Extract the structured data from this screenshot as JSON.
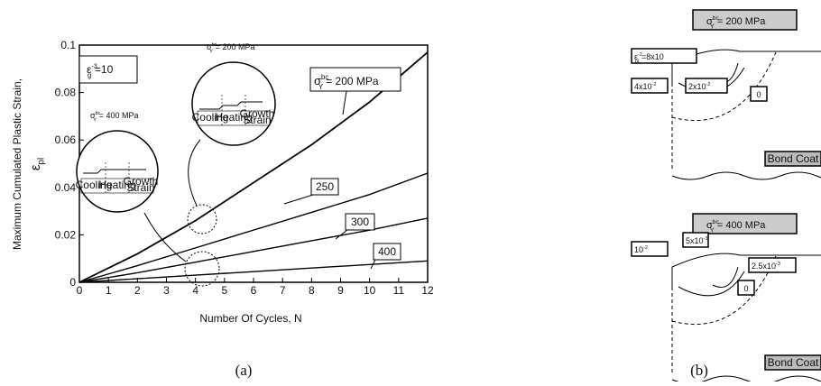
{
  "chart_data": {
    "type": "line",
    "y_label": "Maximum Cumulated Plastic Strain,",
    "y_label_symbol": {
      "base": "ε",
      "sub": "pl"
    },
    "x_label": "Number Of Cycles,  N",
    "caption": "(a)",
    "x": [
      0,
      2,
      4,
      6,
      8,
      10,
      12
    ],
    "series": [
      {
        "name": "= 200 MPa",
        "label_symbol": {
          "base": "σ",
          "sub": "Y",
          "sup": "bc"
        },
        "color": "#000000",
        "values": [
          0,
          0.012,
          0.026,
          0.042,
          0.058,
          0.076,
          0.097
        ]
      },
      {
        "name": "250",
        "color": "#000000",
        "values": [
          0,
          0.007,
          0.0145,
          0.022,
          0.0295,
          0.037,
          0.046
        ]
      },
      {
        "name": "300",
        "color": "#000000",
        "values": [
          0,
          0.004,
          0.0085,
          0.013,
          0.0175,
          0.022,
          0.027
        ]
      },
      {
        "name": "400",
        "color": "#000000",
        "values": [
          0,
          0.0015,
          0.003,
          0.0045,
          0.006,
          0.0075,
          0.009
        ]
      }
    ],
    "xlim": [
      0,
      12
    ],
    "xticks": [
      0,
      1,
      2,
      3,
      4,
      5,
      6,
      7,
      8,
      9,
      10,
      11,
      12
    ],
    "ylim": [
      0,
      0.1
    ],
    "yticks": [
      0,
      0.02,
      0.04,
      0.06,
      0.08,
      0.1
    ],
    "grid": false,
    "annotations": {
      "strain_rate": {
        "base": "ε",
        "sub": "g",
        "eq": "=10",
        "sup": "-3"
      },
      "inset_low": {
        "base": "σ",
        "sub": "Y",
        "sup": "bc",
        "rest": "= 400 MPa"
      },
      "inset_high": {
        "base": "σ",
        "sub": "Y",
        "sup": "bc",
        "rest": "= 200 MPa"
      },
      "phases": [
        "Cooling",
        "Heating",
        "Growth",
        "Strain"
      ]
    }
  },
  "diagram": {
    "caption": "(b)",
    "panels": [
      {
        "title": {
          "base": "σ",
          "sub": "Y",
          "sup": "bc",
          "rest": "= 200 MPa"
        },
        "labels": [
          {
            "base": "ε",
            "sub": "pl",
            "rest": "=8x10",
            "sup": "-2"
          },
          {
            "base": "4x10",
            "sup": "-2"
          },
          {
            "base": "2x10",
            "sup": "-2"
          },
          {
            "base": "0"
          }
        ],
        "substrate": "Bond Coat"
      },
      {
        "title": {
          "base": "σ",
          "sub": "Y",
          "sup": "bc",
          "rest": "= 400 MPa"
        },
        "labels": [
          {
            "base": "10",
            "sup": "-2"
          },
          {
            "base": "5x10",
            "sup": "-3"
          },
          {
            "base": "2.5x10",
            "sup": "-3"
          },
          {
            "base": "0"
          }
        ],
        "substrate": "Bond Coat"
      }
    ]
  }
}
